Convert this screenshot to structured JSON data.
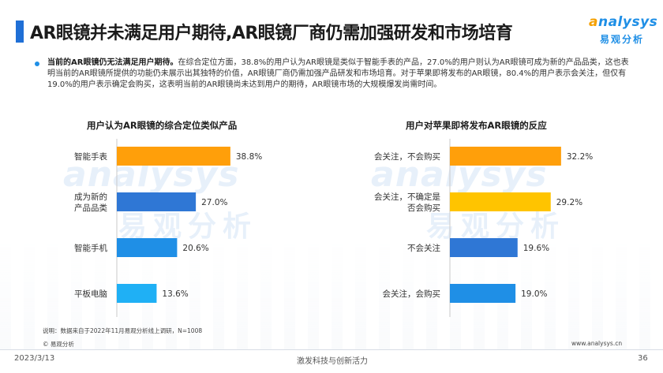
{
  "header": {
    "title": "AR眼镜并未满足用户期待,AR眼镜厂商仍需加强研发和市场培育"
  },
  "logo": {
    "brand_letter": "a",
    "brand_rest": "nalysys",
    "brand_cn": "易观分析"
  },
  "summary": {
    "lead": "当前的AR眼镜仍无法满足用户期待。",
    "body": "在综合定位方面，38.8%的用户认为AR眼镜是类似于智能手表的产品，27.0%的用户则认为AR眼镜可成为新的产品品类，这也表明当前的AR眼镜所提供的功能仍未展示出其独特的价值，AR眼镜厂商仍需加强产品研发和市场培育。对于苹果即将发布的AR眼镜，80.4%的用户表示会关注，但仅有19.0%的用户表示确定会购买，这表明当前的AR眼镜尚未达到用户的期待，AR眼镜市场的大规模爆发尚需时间。"
  },
  "watermark": {
    "en": "analysys",
    "cn": "易观分析"
  },
  "colors": {
    "accent": "#1f6fd6",
    "orange": "#ff9f0a",
    "yellow": "#ffc400",
    "blue_dark": "#2f77d5",
    "blue_mid": "#1f8fe6",
    "blue_light": "#1fb0f5"
  },
  "chart_data": [
    {
      "type": "bar",
      "orientation": "horizontal",
      "title": "用户认为AR眼镜的综合定位类似产品",
      "categories": [
        "智能手表",
        "成为新的产品品类",
        "智能手机",
        "平板电脑"
      ],
      "category_lines": [
        [
          "智能手表"
        ],
        [
          "成为新的",
          "产品品类"
        ],
        [
          "智能手机"
        ],
        [
          "平板电脑"
        ]
      ],
      "values": [
        38.8,
        27.0,
        20.6,
        13.6
      ],
      "value_labels": [
        "38.8%",
        "27.0%",
        "20.6%",
        "13.6%"
      ],
      "bar_colors": [
        "#ff9f0a",
        "#2f77d5",
        "#1f8fe6",
        "#1fb0f5"
      ],
      "xlim": [
        0,
        48
      ],
      "grid": false,
      "legend": "none"
    },
    {
      "type": "bar",
      "orientation": "horizontal",
      "title": "用户对苹果即将发布AR眼镜的反应",
      "categories": [
        "会关注，不会购买",
        "会关注，不确定是否会购买",
        "不会关注",
        "会关注，会购买"
      ],
      "category_lines": [
        [
          "会关注，不会购买"
        ],
        [
          "会关注，不确定是",
          "否会购买"
        ],
        [
          "不会关注"
        ],
        [
          "会关注，会购买"
        ]
      ],
      "values": [
        32.2,
        29.2,
        19.6,
        19.0
      ],
      "value_labels": [
        "32.2%",
        "29.2%",
        "19.6%",
        "19.0%"
      ],
      "bar_colors": [
        "#ff9f0a",
        "#ffc400",
        "#2f77d5",
        "#1f8fe6"
      ],
      "xlim": [
        0,
        48
      ],
      "grid": false,
      "legend": "none"
    }
  ],
  "footnotes": {
    "note": "说明：数据来自于2022年11月易观分析线上调研，N=1008",
    "copyright": "© 易观分析",
    "website": "www.analysys.cn"
  },
  "footer": {
    "date": "2023/3/13",
    "slogan": "激发科技与创新活力",
    "page": "36"
  }
}
